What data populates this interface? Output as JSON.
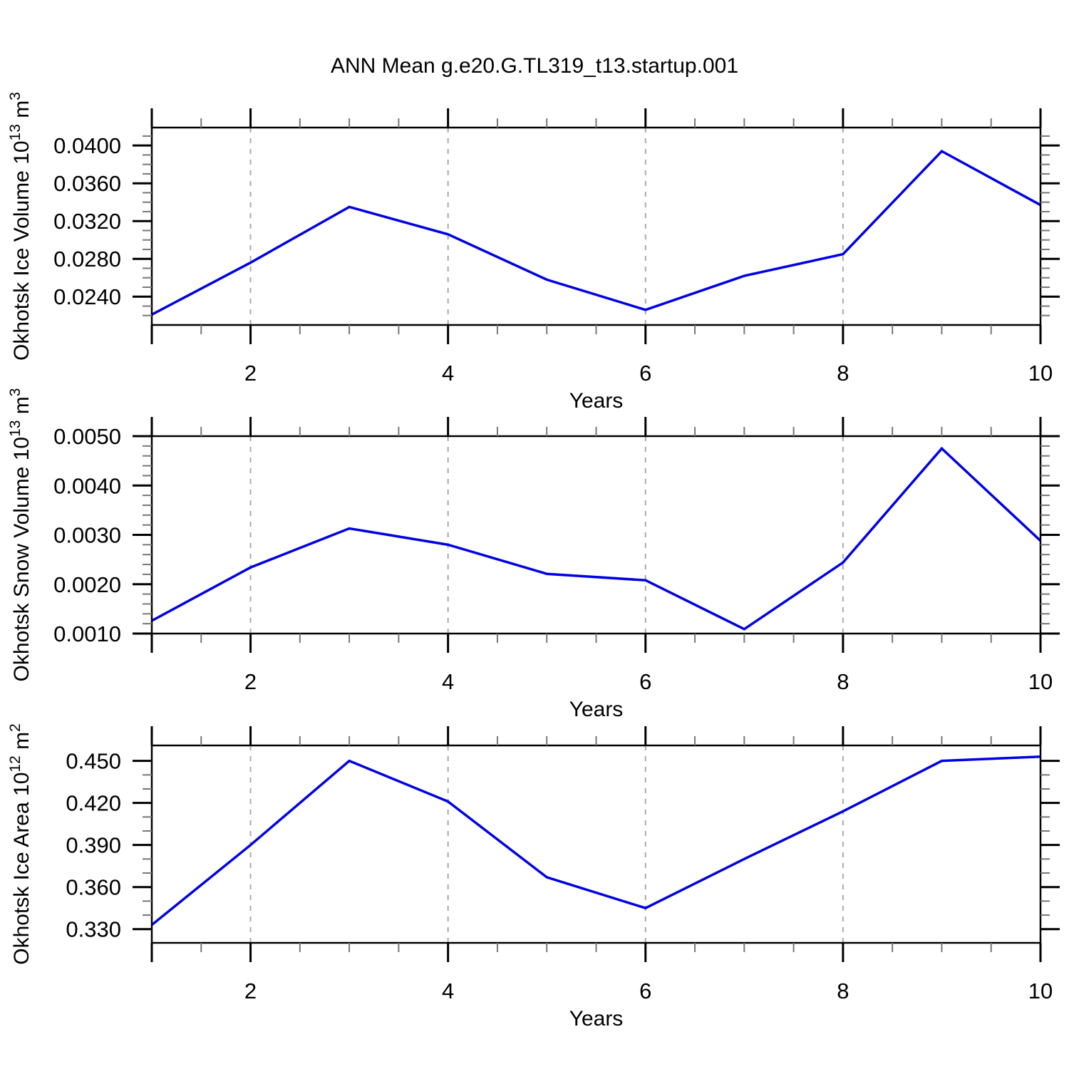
{
  "title": "ANN Mean g.e20.G.TL319_t13.startup.001",
  "colors": {
    "line": "#0000e6",
    "grid": "#aaaaaa",
    "axis": "#000000",
    "minor_tick": "#777777",
    "text": "#000000",
    "background": "#ffffff"
  },
  "chart_data": [
    {
      "type": "line",
      "ylabel": "Okhotsk Ice Volume 10^13 m^3",
      "ylabel_parts": [
        {
          "text": "Okhotsk Ice Volume 10",
          "sup": false
        },
        {
          "text": "13",
          "sup": true
        },
        {
          "text": " m",
          "sup": false
        },
        {
          "text": "3",
          "sup": true
        }
      ],
      "xlabel": "Years",
      "x": [
        1,
        2,
        3,
        4,
        5,
        6,
        7,
        8,
        9,
        10
      ],
      "values": [
        0.0221,
        0.0276,
        0.0335,
        0.0306,
        0.0258,
        0.0226,
        0.0262,
        0.0285,
        0.0394,
        0.0337
      ],
      "xlim": [
        1,
        10
      ],
      "ylim": [
        0.021,
        0.0419
      ],
      "x_major_ticks": [
        1,
        2,
        4,
        6,
        8,
        10
      ],
      "x_tick_labels": [
        "",
        "2",
        "4",
        "6",
        "8",
        "10"
      ],
      "x_minor_step": 0.5,
      "grid_x": [
        2,
        4,
        6,
        8
      ],
      "y_major_ticks": [
        0.024,
        0.028,
        0.032,
        0.036,
        0.04
      ],
      "y_tick_labels": [
        "0.0240",
        "0.0280",
        "0.0320",
        "0.0360",
        "0.0400"
      ],
      "y_minor_step": 0.001
    },
    {
      "type": "line",
      "ylabel": "Okhotsk Snow Volume 10^13 m^3",
      "ylabel_parts": [
        {
          "text": "Okhotsk Snow Volume 10",
          "sup": false
        },
        {
          "text": "13",
          "sup": true
        },
        {
          "text": " m",
          "sup": false
        },
        {
          "text": "3",
          "sup": true
        }
      ],
      "xlabel": "Years",
      "x": [
        1,
        2,
        3,
        4,
        5,
        6,
        7,
        8,
        9,
        10
      ],
      "values": [
        0.00126,
        0.00234,
        0.00313,
        0.0028,
        0.00221,
        0.00208,
        0.00109,
        0.00244,
        0.00475,
        0.00288
      ],
      "xlim": [
        1,
        10
      ],
      "ylim": [
        0.001,
        0.005
      ],
      "x_major_ticks": [
        1,
        2,
        4,
        6,
        8,
        10
      ],
      "x_tick_labels": [
        "",
        "2",
        "4",
        "6",
        "8",
        "10"
      ],
      "x_minor_step": 0.5,
      "grid_x": [
        2,
        4,
        6,
        8
      ],
      "y_major_ticks": [
        0.001,
        0.002,
        0.003,
        0.004,
        0.005
      ],
      "y_tick_labels": [
        "0.0010",
        "0.0020",
        "0.0030",
        "0.0040",
        "0.0050"
      ],
      "y_minor_step": 0.0002
    },
    {
      "type": "line",
      "ylabel": "Okhotsk Ice Area 10^12 m^2",
      "ylabel_parts": [
        {
          "text": "Okhotsk Ice Area 10",
          "sup": false
        },
        {
          "text": "12",
          "sup": true
        },
        {
          "text": " m",
          "sup": false
        },
        {
          "text": "2",
          "sup": true
        }
      ],
      "xlabel": "Years",
      "x": [
        1,
        2,
        3,
        4,
        5,
        6,
        7,
        8,
        9,
        10
      ],
      "values": [
        0.333,
        0.39,
        0.45,
        0.421,
        0.367,
        0.345,
        0.38,
        0.414,
        0.45,
        0.453
      ],
      "xlim": [
        1,
        10
      ],
      "ylim": [
        0.3202,
        0.461
      ],
      "x_major_ticks": [
        1,
        2,
        4,
        6,
        8,
        10
      ],
      "x_tick_labels": [
        "",
        "2",
        "4",
        "6",
        "8",
        "10"
      ],
      "x_minor_step": 0.5,
      "grid_x": [
        2,
        4,
        6,
        8
      ],
      "y_major_ticks": [
        0.33,
        0.36,
        0.39,
        0.42,
        0.45
      ],
      "y_tick_labels": [
        "0.330",
        "0.360",
        "0.390",
        "0.420",
        "0.450"
      ],
      "y_minor_step": 0.01
    }
  ]
}
